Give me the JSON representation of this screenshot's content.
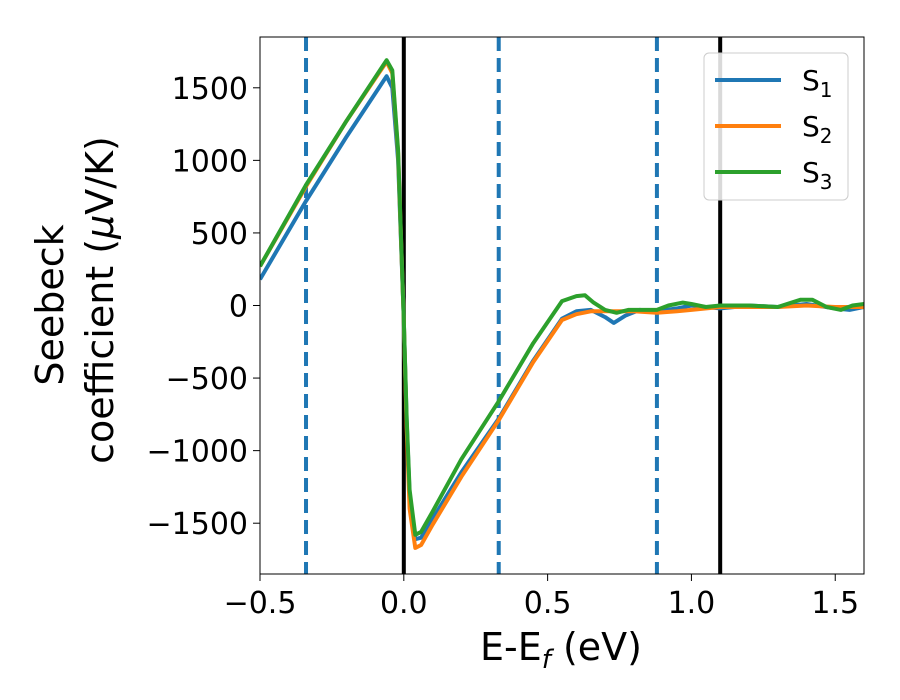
{
  "chart_data": {
    "type": "line",
    "xlabel": "E-E",
    "xlabel_sub": "f",
    "xlabel_unit": " (eV)",
    "ylabel_line1": "Seebeck",
    "ylabel_line2": "coefficient  (",
    "ylabel_mu": "μ",
    "ylabel_unit": "V/K)",
    "xlim": [
      -0.5,
      1.6
    ],
    "ylim": [
      -1850,
      1850
    ],
    "xticks": [
      -0.5,
      0.0,
      0.5,
      1.0,
      1.5
    ],
    "xtick_labels": [
      "−0.5",
      "0.0",
      "0.5",
      "1.0",
      "1.5"
    ],
    "yticks": [
      -1500,
      -1000,
      -500,
      0,
      500,
      1000,
      1500
    ],
    "ytick_labels": [
      "−1500",
      "−1000",
      "−500",
      "0",
      "500",
      "1000",
      "1500"
    ],
    "legend_position": "top-right",
    "vlines_solid": [
      0.0,
      1.1
    ],
    "vlines_dashed": [
      -0.34,
      0.33,
      0.88
    ],
    "series": [
      {
        "name": "S",
        "sub": "1",
        "color": "#1f77b4",
        "x": [
          -0.5,
          -0.34,
          -0.2,
          -0.06,
          -0.04,
          -0.02,
          0.0,
          0.01,
          0.02,
          0.04,
          0.06,
          0.1,
          0.2,
          0.33,
          0.45,
          0.55,
          0.6,
          0.65,
          0.7,
          0.73,
          0.77,
          0.82,
          0.88,
          0.95,
          1.0,
          1.05,
          1.1,
          1.15,
          1.2,
          1.3,
          1.4,
          1.5,
          1.55,
          1.6
        ],
        "y": [
          180,
          720,
          1160,
          1580,
          1500,
          1000,
          -100,
          -800,
          -1300,
          -1610,
          -1600,
          -1470,
          -1150,
          -780,
          -380,
          -90,
          -40,
          -30,
          -80,
          -120,
          -70,
          -30,
          -40,
          -20,
          0,
          -10,
          -20,
          -10,
          0,
          -10,
          10,
          -20,
          -30,
          -10
        ]
      },
      {
        "name": "S",
        "sub": "2",
        "color": "#ff7f0e",
        "x": [
          -0.5,
          -0.34,
          -0.2,
          -0.06,
          -0.04,
          -0.02,
          0.0,
          0.01,
          0.02,
          0.04,
          0.06,
          0.1,
          0.2,
          0.33,
          0.45,
          0.55,
          0.6,
          0.65,
          0.7,
          0.75,
          0.8,
          0.88,
          0.95,
          1.0,
          1.1,
          1.2,
          1.3,
          1.4,
          1.5,
          1.6
        ],
        "y": [
          270,
          820,
          1270,
          1680,
          1600,
          1050,
          -100,
          -850,
          -1400,
          -1670,
          -1650,
          -1510,
          -1180,
          -790,
          -390,
          -100,
          -60,
          -40,
          -40,
          -40,
          -40,
          -50,
          -40,
          -30,
          -10,
          -10,
          -10,
          0,
          -10,
          -10
        ]
      },
      {
        "name": "S",
        "sub": "3",
        "color": "#2ca02c",
        "x": [
          -0.5,
          -0.34,
          -0.2,
          -0.06,
          -0.04,
          -0.02,
          0.0,
          0.01,
          0.02,
          0.04,
          0.06,
          0.1,
          0.2,
          0.33,
          0.45,
          0.55,
          0.6,
          0.63,
          0.66,
          0.7,
          0.74,
          0.78,
          0.83,
          0.88,
          0.92,
          0.97,
          1.0,
          1.05,
          1.1,
          1.2,
          1.3,
          1.38,
          1.42,
          1.47,
          1.52,
          1.56,
          1.6
        ],
        "y": [
          270,
          830,
          1270,
          1690,
          1620,
          1070,
          -100,
          -780,
          -1270,
          -1580,
          -1560,
          -1420,
          -1060,
          -660,
          -260,
          30,
          65,
          70,
          20,
          -30,
          -50,
          -30,
          -30,
          -30,
          0,
          20,
          10,
          -10,
          0,
          0,
          -10,
          40,
          40,
          -10,
          -30,
          0,
          10
        ]
      }
    ]
  }
}
